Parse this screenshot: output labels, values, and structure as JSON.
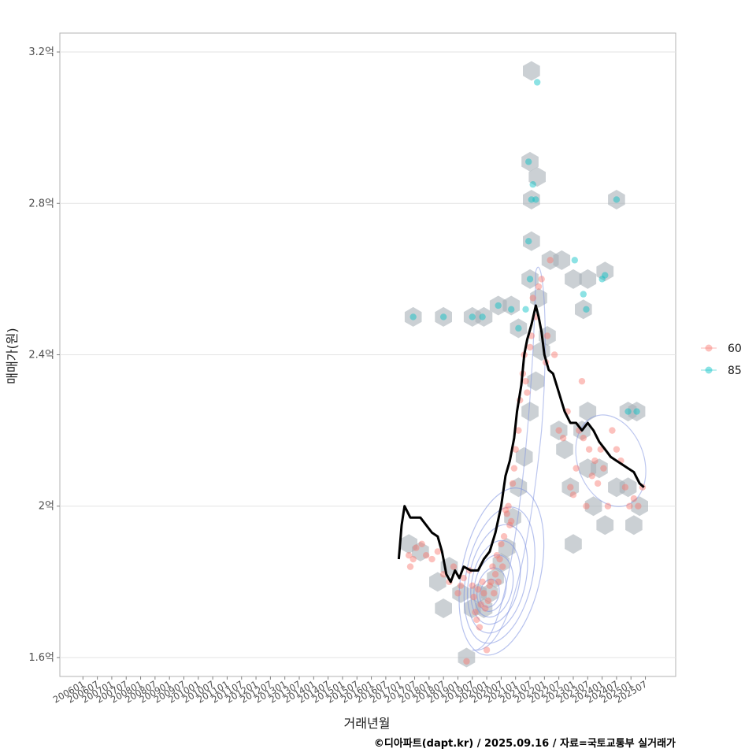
{
  "chart_data": {
    "type": "scatter",
    "title": "",
    "xlabel": "거래년월",
    "ylabel": "매매가(원)",
    "caption": "©디아파트(dapt.kr) / 2025.09.16 / 자료=국토교통부 실거래가",
    "ylim": [
      1.55,
      3.25
    ],
    "y_ticks": [
      {
        "value": 1.6,
        "label": "1.6억"
      },
      {
        "value": 2.0,
        "label": "2억"
      },
      {
        "value": 2.4,
        "label": "2.4억"
      },
      {
        "value": 2.8,
        "label": "2.8억"
      },
      {
        "value": 3.2,
        "label": "3.2억"
      }
    ],
    "x_ticks": [
      "200601",
      "200607",
      "200701",
      "200707",
      "200801",
      "200807",
      "200901",
      "200907",
      "201001",
      "201007",
      "201101",
      "201107",
      "201201",
      "201207",
      "201301",
      "201307",
      "201401",
      "201407",
      "201501",
      "201507",
      "201601",
      "201607",
      "201701",
      "201707",
      "201801",
      "201807",
      "201901",
      "201907",
      "202001",
      "202007",
      "202101",
      "202107",
      "202201",
      "202207",
      "202301",
      "202307",
      "202401",
      "202407",
      "202501",
      "202507"
    ],
    "legend": {
      "position": "right",
      "items": [
        {
          "label": "60",
          "color": "#F8766D"
        },
        {
          "label": "85",
          "color": "#00BFC4"
        }
      ]
    },
    "series": [
      {
        "name": "60",
        "color": "#F8766D",
        "points": [
          [
            2017.3,
            1.87
          ],
          [
            2017.35,
            1.84
          ],
          [
            2017.45,
            1.86
          ],
          [
            2017.55,
            1.89
          ],
          [
            2017.75,
            1.9
          ],
          [
            2017.9,
            1.87
          ],
          [
            2018.1,
            1.86
          ],
          [
            2018.3,
            1.88
          ],
          [
            2018.5,
            1.82
          ],
          [
            2018.7,
            1.8
          ],
          [
            2018.85,
            1.84
          ],
          [
            2019.0,
            1.77
          ],
          [
            2019.1,
            1.79
          ],
          [
            2019.2,
            1.81
          ],
          [
            2019.3,
            1.59
          ],
          [
            2019.4,
            1.83
          ],
          [
            2019.5,
            1.79
          ],
          [
            2019.55,
            1.76
          ],
          [
            2019.6,
            1.72
          ],
          [
            2019.65,
            1.7
          ],
          [
            2019.7,
            1.78
          ],
          [
            2019.75,
            1.68
          ],
          [
            2019.8,
            1.74
          ],
          [
            2019.85,
            1.8
          ],
          [
            2019.9,
            1.77
          ],
          [
            2019.95,
            1.73
          ],
          [
            2020.0,
            1.62
          ],
          [
            2020.05,
            1.75
          ],
          [
            2020.1,
            1.79
          ],
          [
            2020.15,
            1.8
          ],
          [
            2020.2,
            1.84
          ],
          [
            2020.25,
            1.77
          ],
          [
            2020.3,
            1.82
          ],
          [
            2020.35,
            1.87
          ],
          [
            2020.4,
            1.8
          ],
          [
            2020.45,
            1.86
          ],
          [
            2020.5,
            1.9
          ],
          [
            2020.55,
            1.84
          ],
          [
            2020.6,
            1.92
          ],
          [
            2020.65,
            1.99
          ],
          [
            2020.7,
            1.98
          ],
          [
            2020.75,
            2.0
          ],
          [
            2020.8,
            1.95
          ],
          [
            2020.85,
            1.96
          ],
          [
            2020.9,
            2.06
          ],
          [
            2020.95,
            2.1
          ],
          [
            2021.0,
            2.15
          ],
          [
            2021.1,
            2.2
          ],
          [
            2021.15,
            2.28
          ],
          [
            2021.25,
            2.35
          ],
          [
            2021.3,
            2.4
          ],
          [
            2021.35,
            2.33
          ],
          [
            2021.4,
            2.3
          ],
          [
            2021.5,
            2.42
          ],
          [
            2021.55,
            2.45
          ],
          [
            2021.6,
            2.55
          ],
          [
            2021.7,
            2.5
          ],
          [
            2021.8,
            2.58
          ],
          [
            2021.9,
            2.6
          ],
          [
            2022.05,
            2.38
          ],
          [
            2022.1,
            2.45
          ],
          [
            2022.2,
            2.65
          ],
          [
            2022.35,
            2.4
          ],
          [
            2022.5,
            2.2
          ],
          [
            2022.65,
            2.18
          ],
          [
            2022.8,
            2.25
          ],
          [
            2022.9,
            2.05
          ],
          [
            2023.0,
            2.03
          ],
          [
            2023.1,
            2.1
          ],
          [
            2023.2,
            2.2
          ],
          [
            2023.3,
            2.33
          ],
          [
            2023.35,
            2.18
          ],
          [
            2023.45,
            2.0
          ],
          [
            2023.55,
            2.15
          ],
          [
            2023.65,
            2.08
          ],
          [
            2023.75,
            2.12
          ],
          [
            2023.85,
            2.06
          ],
          [
            2023.95,
            2.15
          ],
          [
            2024.05,
            2.1
          ],
          [
            2024.2,
            2.0
          ],
          [
            2024.35,
            2.2
          ],
          [
            2024.5,
            2.15
          ],
          [
            2024.65,
            2.12
          ],
          [
            2024.8,
            2.05
          ],
          [
            2024.95,
            2.0
          ],
          [
            2025.1,
            2.02
          ],
          [
            2025.25,
            2.0
          ],
          [
            2025.4,
            2.05
          ]
        ]
      },
      {
        "name": "85",
        "color": "#00BFC4",
        "points": [
          [
            2017.45,
            2.5
          ],
          [
            2018.5,
            2.5
          ],
          [
            2019.5,
            2.5
          ],
          [
            2019.85,
            2.5
          ],
          [
            2020.4,
            2.53
          ],
          [
            2020.85,
            2.52
          ],
          [
            2021.1,
            2.47
          ],
          [
            2021.35,
            2.52
          ],
          [
            2021.45,
            2.91
          ],
          [
            2021.55,
            2.81
          ],
          [
            2021.6,
            2.85
          ],
          [
            2021.7,
            2.81
          ],
          [
            2021.75,
            3.12
          ],
          [
            2021.45,
            2.7
          ],
          [
            2021.5,
            2.6
          ],
          [
            2023.05,
            2.65
          ],
          [
            2023.35,
            2.56
          ],
          [
            2023.45,
            2.52
          ],
          [
            2024.0,
            2.6
          ],
          [
            2024.1,
            2.61
          ],
          [
            2024.5,
            2.81
          ],
          [
            2024.9,
            2.25
          ],
          [
            2025.2,
            2.25
          ]
        ]
      },
      {
        "name": "moving-average",
        "color": "#000000",
        "points": [
          [
            2016.95,
            1.86
          ],
          [
            2017.05,
            1.95
          ],
          [
            2017.15,
            2.0
          ],
          [
            2017.35,
            1.97
          ],
          [
            2017.7,
            1.97
          ],
          [
            2017.9,
            1.95
          ],
          [
            2018.1,
            1.93
          ],
          [
            2018.3,
            1.92
          ],
          [
            2018.45,
            1.88
          ],
          [
            2018.6,
            1.82
          ],
          [
            2018.75,
            1.8
          ],
          [
            2018.9,
            1.83
          ],
          [
            2019.05,
            1.81
          ],
          [
            2019.2,
            1.84
          ],
          [
            2019.45,
            1.83
          ],
          [
            2019.7,
            1.83
          ],
          [
            2019.9,
            1.86
          ],
          [
            2020.1,
            1.88
          ],
          [
            2020.3,
            1.93
          ],
          [
            2020.5,
            2.0
          ],
          [
            2020.65,
            2.08
          ],
          [
            2020.8,
            2.12
          ],
          [
            2020.95,
            2.18
          ],
          [
            2021.05,
            2.25
          ],
          [
            2021.2,
            2.32
          ],
          [
            2021.3,
            2.4
          ],
          [
            2021.4,
            2.44
          ],
          [
            2021.55,
            2.48
          ],
          [
            2021.7,
            2.53
          ],
          [
            2021.8,
            2.5
          ],
          [
            2021.9,
            2.46
          ],
          [
            2022.0,
            2.4
          ],
          [
            2022.15,
            2.36
          ],
          [
            2022.3,
            2.35
          ],
          [
            2022.5,
            2.3
          ],
          [
            2022.7,
            2.25
          ],
          [
            2022.9,
            2.22
          ],
          [
            2023.1,
            2.22
          ],
          [
            2023.3,
            2.2
          ],
          [
            2023.5,
            2.22
          ],
          [
            2023.7,
            2.2
          ],
          [
            2023.9,
            2.17
          ],
          [
            2024.1,
            2.15
          ],
          [
            2024.3,
            2.13
          ],
          [
            2024.5,
            2.12
          ],
          [
            2024.7,
            2.11
          ],
          [
            2024.9,
            2.1
          ],
          [
            2025.1,
            2.09
          ],
          [
            2025.3,
            2.06
          ],
          [
            2025.45,
            2.05
          ]
        ]
      }
    ],
    "hexbin": [
      [
        2017.45,
        2.5
      ],
      [
        2018.5,
        2.5
      ],
      [
        2019.5,
        2.5
      ],
      [
        2019.9,
        2.5
      ],
      [
        2020.4,
        2.53
      ],
      [
        2020.85,
        2.53
      ],
      [
        2021.1,
        2.47
      ],
      [
        2021.55,
        3.15
      ],
      [
        2021.5,
        2.91
      ],
      [
        2021.75,
        2.87
      ],
      [
        2021.55,
        2.81
      ],
      [
        2021.55,
        2.7
      ],
      [
        2021.5,
        2.6
      ],
      [
        2021.8,
        2.55
      ],
      [
        2022.2,
        2.65
      ],
      [
        2022.6,
        2.65
      ],
      [
        2023.0,
        2.6
      ],
      [
        2023.35,
        2.52
      ],
      [
        2023.5,
        2.6
      ],
      [
        2024.1,
        2.62
      ],
      [
        2024.5,
        2.81
      ],
      [
        2024.9,
        2.25
      ],
      [
        2025.2,
        2.25
      ],
      [
        2017.3,
        1.9
      ],
      [
        2017.7,
        1.88
      ],
      [
        2018.3,
        1.8
      ],
      [
        2018.7,
        1.84
      ],
      [
        2018.5,
        1.73
      ],
      [
        2019.1,
        1.77
      ],
      [
        2019.3,
        1.6
      ],
      [
        2019.5,
        1.73
      ],
      [
        2019.7,
        1.77
      ],
      [
        2019.9,
        1.73
      ],
      [
        2020.1,
        1.77
      ],
      [
        2020.3,
        1.81
      ],
      [
        2020.5,
        1.85
      ],
      [
        2020.7,
        1.89
      ],
      [
        2020.9,
        1.97
      ],
      [
        2021.1,
        2.05
      ],
      [
        2021.3,
        2.13
      ],
      [
        2021.5,
        2.25
      ],
      [
        2021.7,
        2.33
      ],
      [
        2021.9,
        2.41
      ],
      [
        2022.1,
        2.45
      ],
      [
        2022.5,
        2.2
      ],
      [
        2022.9,
        2.05
      ],
      [
        2023.3,
        2.2
      ],
      [
        2023.5,
        2.1
      ],
      [
        2023.7,
        2.0
      ],
      [
        2023.9,
        2.1
      ],
      [
        2024.1,
        1.95
      ],
      [
        2024.5,
        2.05
      ],
      [
        2024.9,
        2.05
      ],
      [
        2025.1,
        1.95
      ],
      [
        2025.3,
        2.0
      ],
      [
        2023.0,
        1.9
      ],
      [
        2023.5,
        2.25
      ],
      [
        2022.7,
        2.15
      ]
    ],
    "density_center": [
      2020.1,
      1.77
    ]
  }
}
